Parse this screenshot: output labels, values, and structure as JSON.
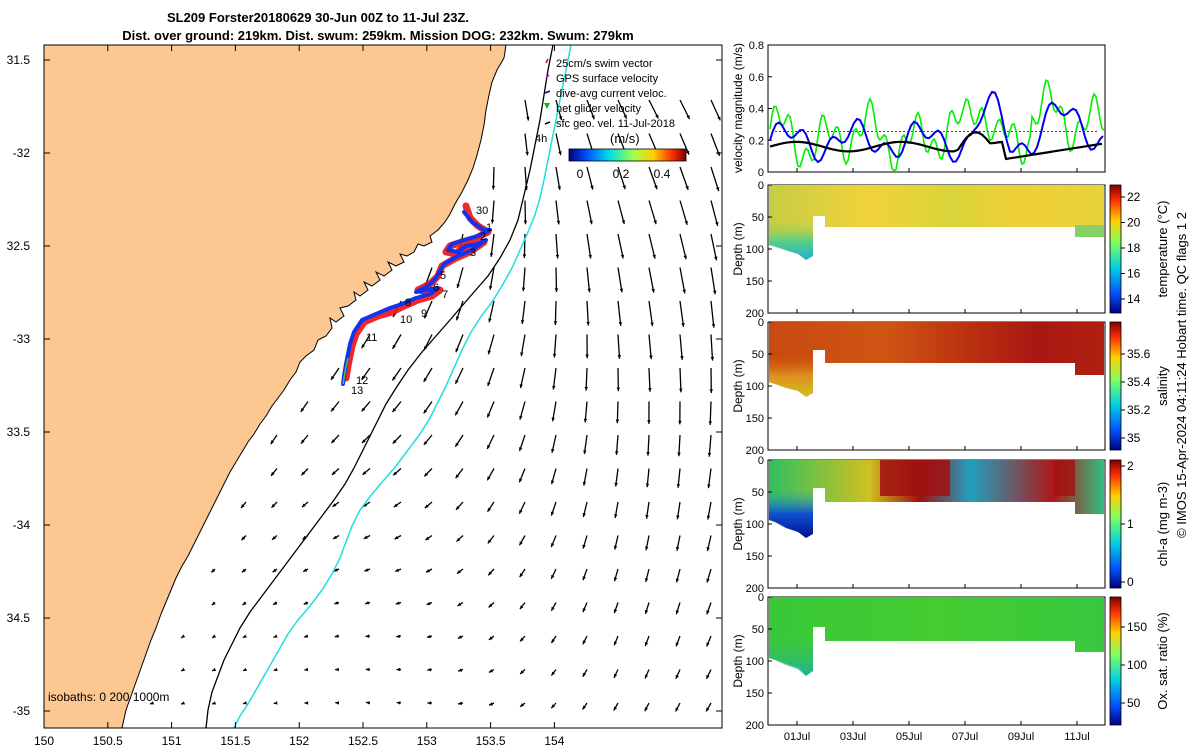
{
  "title": {
    "line1": "SL209 Forster20180629 30-Jun 00Z to 11-Jul 23Z.",
    "line2": "Dist. over ground: 219km. Dist. swum: 259km. Mission DOG: 232km. Swum: 279km"
  },
  "map": {
    "lon_ticks": [
      "150",
      "150.5",
      "151",
      "151.5",
      "152",
      "152.5",
      "153",
      "153.5",
      "154"
    ],
    "lat_ticks": [
      "31.5",
      "-32",
      "32.5",
      "-33",
      "33.5",
      "-34",
      "34.5",
      "-35"
    ],
    "legend": [
      {
        "label": "25cm/s swim vector",
        "color": "#dd0000"
      },
      {
        "label": "GPS surface velocity",
        "color": "#cc00cc"
      },
      {
        "label": "dive-avg current veloc.",
        "color": "#0000cc"
      },
      {
        "label": "net glider velocity",
        "color": "#00bb00"
      },
      {
        "label": "sfc geo. vel. 11-Jul-2018",
        "color": "#000000"
      }
    ],
    "extra_label": "4h",
    "speed_cbar": {
      "label": "(m/s)",
      "ticks": [
        "0",
        "0.2",
        "0.4"
      ]
    },
    "isobaths_label": "isobaths: 0   200 1000m",
    "track_labels": [
      "30",
      "1",
      "2",
      "3",
      "5",
      "6",
      "7",
      "8",
      "9",
      "10",
      "11",
      "12",
      "13"
    ],
    "colors": {
      "land": "#fcc791",
      "track": "#0022ee",
      "swim": "#ee1111",
      "isobath_200": "#000000",
      "isobath_1000": "#22dddd"
    }
  },
  "velocity_panel": {
    "ylabel": "velocity magnitude (m/s)",
    "yticks": [
      "0",
      "0.2",
      "0.4",
      "0.6",
      "0.8"
    ],
    "ylim": [
      0,
      0.8
    ],
    "series": [
      {
        "color": "#00ee00"
      },
      {
        "color": "#0000ee"
      },
      {
        "color": "#000000"
      },
      {
        "color": "#ee0000"
      }
    ]
  },
  "panels": [
    {
      "var_label": "temperature (°C)",
      "ylabel": "Depth (m)",
      "yticks": [
        "0",
        "50",
        "100",
        "150",
        "200"
      ],
      "cbar_ticks": [
        "14",
        "16",
        "18",
        "20",
        "22"
      ]
    },
    {
      "var_label": "salinity",
      "ylabel": "Depth (m)",
      "yticks": [
        "0",
        "50",
        "100",
        "150",
        "200"
      ],
      "cbar_ticks": [
        "35",
        "35.2",
        "35.4",
        "35.6"
      ]
    },
    {
      "var_label": "chl-a (mg m-3)",
      "ylabel": "Depth (m)",
      "yticks": [
        "0",
        "50",
        "100",
        "150",
        "200"
      ],
      "cbar_ticks": [
        "0",
        "1",
        "2"
      ]
    },
    {
      "var_label": "Ox. sat. ratio (%)",
      "ylabel": "Depth (m)",
      "yticks": [
        "0",
        "50",
        "100",
        "150",
        "200"
      ],
      "cbar_ticks": [
        "50",
        "100",
        "150"
      ]
    }
  ],
  "time_ticks": [
    "01Jul",
    "03Jul",
    "05Jul",
    "07Jul",
    "09Jul",
    "11Jul"
  ],
  "qc_label": "© IMOS 15-Apr-2024 04:11:24 Hobart time. QC flags 1  2"
}
